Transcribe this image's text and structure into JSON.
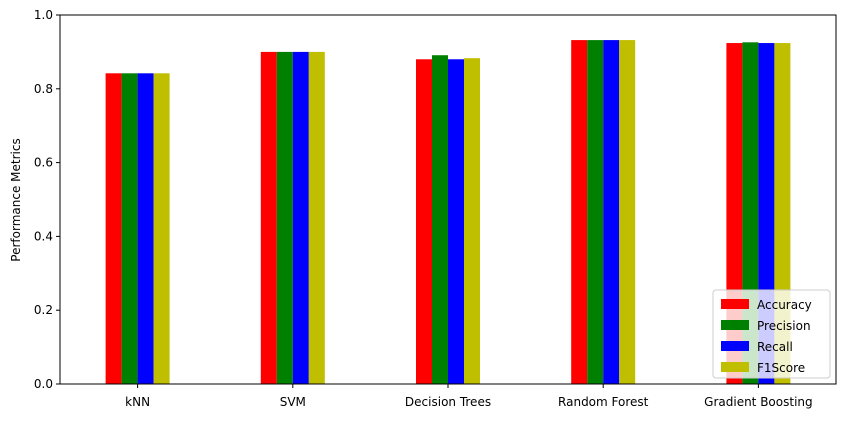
{
  "chart_data": {
    "type": "bar",
    "title": "",
    "xlabel": "",
    "ylabel": "Performance Metrics",
    "ylim": [
      0,
      1.0
    ],
    "yticks": [
      "0.0",
      "0.2",
      "0.4",
      "0.6",
      "0.8",
      "1.0"
    ],
    "categories": [
      "kNN",
      "SVM",
      "Decision Trees",
      "Random Forest",
      "Gradient Boosting"
    ],
    "series": [
      {
        "name": "Accuracy",
        "color": "#ff0000",
        "values": [
          0.842,
          0.9,
          0.88,
          0.932,
          0.924
        ]
      },
      {
        "name": "Precision",
        "color": "#008000",
        "values": [
          0.842,
          0.9,
          0.891,
          0.932,
          0.926
        ]
      },
      {
        "name": "Recall",
        "color": "#0000ff",
        "values": [
          0.842,
          0.9,
          0.88,
          0.932,
          0.924
        ]
      },
      {
        "name": "F1Score",
        "color": "#bfbf00",
        "values": [
          0.842,
          0.9,
          0.883,
          0.932,
          0.924
        ]
      }
    ],
    "grid": false,
    "legend_position": "lower-right"
  }
}
